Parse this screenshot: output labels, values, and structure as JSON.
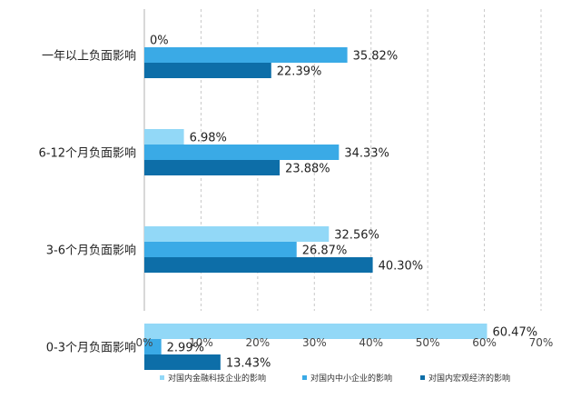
{
  "chart_data": {
    "type": "bar",
    "orientation": "horizontal",
    "categories": [
      "一年以上负面影响",
      "6-12个月负面影响",
      "3-6个月负面影响",
      "0-3个月负面影响"
    ],
    "series": [
      {
        "name": "对国内金融科技企业的影响",
        "values": [
          0,
          6.98,
          32.56,
          60.47
        ],
        "labels": [
          "0%",
          "6.98%",
          "32.56%",
          "60.47%"
        ],
        "color": "#92d8f7"
      },
      {
        "name": "对国内中小企业的影响",
        "values": [
          35.82,
          34.33,
          26.87,
          2.99
        ],
        "labels": [
          "35.82%",
          "34.33%",
          "26.87%",
          "2.99%"
        ],
        "color": "#3aaae6"
      },
      {
        "name": "对国内宏观经济的影响",
        "values": [
          22.39,
          23.88,
          40.3,
          13.43
        ],
        "labels": [
          "22.39%",
          "23.88%",
          "40.30%",
          "13.43%"
        ],
        "color": "#0d6ea8"
      }
    ],
    "xlim": [
      0,
      70
    ],
    "xticks": [
      "0%",
      "10%",
      "20%",
      "30%",
      "40%",
      "50%",
      "60%",
      "70%"
    ],
    "grid": "vertical-dashed",
    "legend_position": "bottom",
    "title": "",
    "xlabel": "",
    "ylabel": ""
  }
}
